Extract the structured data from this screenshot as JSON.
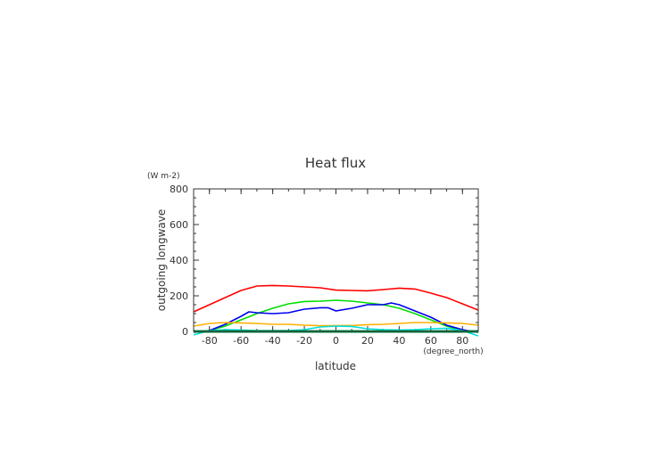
{
  "chart_data": {
    "type": "line",
    "title": "Heat flux",
    "ylabel": "outgoing longwave",
    "yunits": "(W m-2)",
    "xlabel": "latitude",
    "xunits": "(degree_north)",
    "xlim": [
      -90,
      90
    ],
    "ylim": [
      0,
      800
    ],
    "xticks": [
      -80,
      -60,
      -40,
      -20,
      0,
      20,
      40,
      60,
      80
    ],
    "yticks": [
      0,
      200,
      400,
      600,
      800
    ],
    "grid": false,
    "series": [
      {
        "name": "red",
        "color": "#ff0000",
        "x": [
          -90,
          -80,
          -70,
          -60,
          -50,
          -40,
          -30,
          -20,
          -10,
          0,
          10,
          20,
          30,
          40,
          50,
          60,
          70,
          80,
          90
        ],
        "y": [
          110,
          150,
          190,
          230,
          255,
          258,
          255,
          250,
          245,
          232,
          230,
          228,
          235,
          243,
          238,
          215,
          190,
          155,
          120
        ]
      },
      {
        "name": "green",
        "color": "#00dd00",
        "x": [
          -90,
          -80,
          -70,
          -60,
          -50,
          -40,
          -30,
          -20,
          -10,
          0,
          10,
          20,
          30,
          40,
          50,
          60,
          70,
          80,
          90
        ],
        "y": [
          -5,
          5,
          30,
          65,
          100,
          130,
          155,
          168,
          170,
          175,
          170,
          160,
          150,
          130,
          100,
          65,
          30,
          5,
          -5
        ]
      },
      {
        "name": "blue",
        "color": "#0000ee",
        "x": [
          -90,
          -80,
          -70,
          -60,
          -55,
          -50,
          -40,
          -30,
          -20,
          -10,
          -5,
          0,
          10,
          20,
          30,
          35,
          40,
          50,
          60,
          70,
          80,
          90
        ],
        "y": [
          -5,
          5,
          40,
          85,
          110,
          105,
          100,
          105,
          125,
          133,
          133,
          115,
          130,
          150,
          150,
          160,
          150,
          115,
          80,
          35,
          10,
          -5
        ]
      },
      {
        "name": "orange",
        "color": "#ffb000",
        "x": [
          -90,
          -80,
          -70,
          -60,
          -50,
          -40,
          -30,
          -20,
          -10,
          0,
          10,
          20,
          30,
          40,
          50,
          60,
          70,
          80,
          90
        ],
        "y": [
          30,
          45,
          50,
          48,
          45,
          40,
          40,
          35,
          32,
          33,
          33,
          38,
          40,
          45,
          50,
          50,
          48,
          45,
          35
        ]
      },
      {
        "name": "cyan",
        "color": "#00e0e0",
        "x": [
          -90,
          -80,
          -70,
          -60,
          -50,
          -40,
          -30,
          -20,
          -10,
          0,
          10,
          20,
          30,
          40,
          50,
          60,
          70,
          80,
          90
        ],
        "y": [
          -20,
          5,
          10,
          8,
          5,
          5,
          5,
          10,
          25,
          30,
          28,
          15,
          10,
          8,
          10,
          15,
          18,
          5,
          -25
        ]
      },
      {
        "name": "dark-green",
        "color": "#008844",
        "x": [
          -90,
          90
        ],
        "y": [
          0,
          0
        ]
      }
    ]
  }
}
